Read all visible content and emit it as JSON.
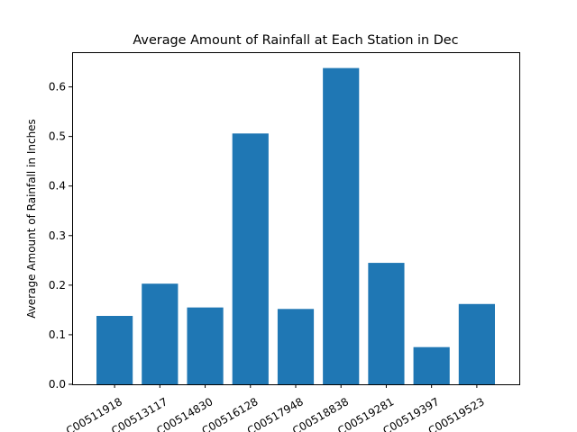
{
  "chart_data": {
    "type": "bar",
    "title": "Average Amount of Rainfall at Each Station in Dec",
    "xlabel": "",
    "ylabel": "Average Amount of Rainfall in Inches",
    "categories": [
      "C00511918",
      "C00513117",
      "C00514830",
      "C00516128",
      "C00517948",
      "C00518838",
      "C00519281",
      "C00519397",
      "C00519523"
    ],
    "values": [
      0.138,
      0.203,
      0.155,
      0.506,
      0.152,
      0.638,
      0.245,
      0.075,
      0.162
    ],
    "ylim": [
      0,
      0.67
    ],
    "yticks": [
      0.0,
      0.1,
      0.2,
      0.3,
      0.4,
      0.5,
      0.6
    ],
    "ytick_labels": [
      "0.0",
      "0.1",
      "0.2",
      "0.3",
      "0.4",
      "0.5",
      "0.6"
    ],
    "bar_color": "#1f77b4",
    "grid": false,
    "xtick_rotation": "30 degrees"
  }
}
